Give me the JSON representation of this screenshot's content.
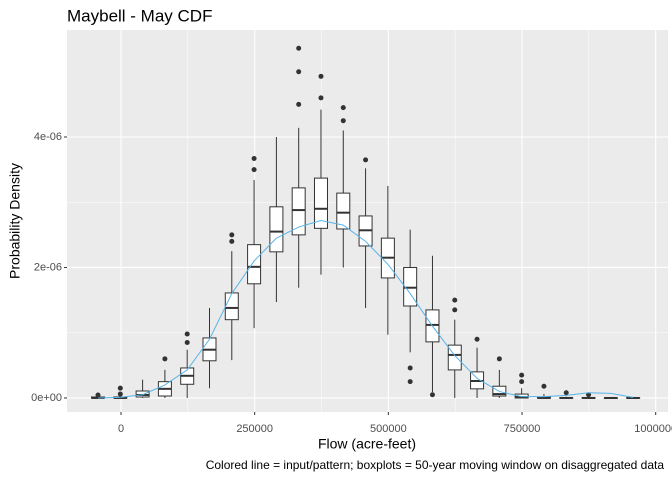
{
  "chart_data": {
    "type": "boxplot",
    "title": "Maybell - May CDF",
    "x_label": "Flow (acre-feet)",
    "y_label": "Probability Density",
    "caption": "Colored line = input/pattern; boxplots = 50-year moving window on disaggregated data",
    "xlim": [
      -101000,
      1023000
    ],
    "ylim": [
      -2.15e-07,
      5.64e-06
    ],
    "xticks": [
      0,
      250000,
      500000,
      750000,
      1000000
    ],
    "yticks": [
      {
        "value": 0,
        "label": "0e+00"
      },
      {
        "value": 2e-06,
        "label": "2e-06"
      },
      {
        "value": 4e-06,
        "label": "4e-06"
      }
    ],
    "grid": true,
    "x": [
      -43000,
      -1300,
      40400,
      82100,
      123800,
      165500,
      207200,
      248900,
      290600,
      332300,
      374000,
      415700,
      457400,
      499100,
      540800,
      582500,
      624200,
      665900,
      707600,
      749300,
      791000,
      832700,
      874400,
      916100,
      957800
    ],
    "boxes": [
      {
        "min": 0,
        "q1": 0,
        "median": 0,
        "q3": 1.5e-08,
        "max": 1.5e-08,
        "outliers": [
          4.6e-08
        ]
      },
      {
        "min": 0,
        "q1": 0,
        "median": 0,
        "q3": 1.5e-08,
        "max": 3e-08,
        "outliers": [
          6e-08,
          1.5e-07
        ]
      },
      {
        "min": 0,
        "q1": 1.5e-08,
        "median": 4.6e-08,
        "q3": 1.07e-07,
        "max": 2.8e-07,
        "outliers": []
      },
      {
        "min": 0,
        "q1": 3e-08,
        "median": 1.4e-07,
        "q3": 2.5e-07,
        "max": 4.3e-07,
        "outliers": [
          6e-07
        ]
      },
      {
        "min": 0,
        "q1": 2.1e-07,
        "median": 3.4e-07,
        "q3": 4.6e-07,
        "max": 7.4e-07,
        "outliers": [
          8.5e-07,
          9.8e-07
        ]
      },
      {
        "min": 1.5e-07,
        "q1": 5.7e-07,
        "median": 7.4e-07,
        "q3": 9.2e-07,
        "max": 1.38e-06,
        "outliers": []
      },
      {
        "min": 5.8e-07,
        "q1": 1.2e-06,
        "median": 1.38e-06,
        "q3": 1.61e-06,
        "max": 2.25e-06,
        "outliers": [
          2.4e-06,
          2.5e-06
        ]
      },
      {
        "min": 1.07e-06,
        "q1": 1.75e-06,
        "median": 2.01e-06,
        "q3": 2.35e-06,
        "max": 3.34e-06,
        "outliers": [
          3.5e-06,
          3.67e-06
        ]
      },
      {
        "min": 1.47e-06,
        "q1": 2.24e-06,
        "median": 2.55e-06,
        "q3": 2.93e-06,
        "max": 4e-06,
        "outliers": []
      },
      {
        "min": 1.69e-06,
        "q1": 2.5e-06,
        "median": 2.88e-06,
        "q3": 3.22e-06,
        "max": 4.14e-06,
        "outliers": [
          4.5e-06,
          5e-06,
          5.36e-06
        ]
      },
      {
        "min": 1.89e-06,
        "q1": 2.6e-06,
        "median": 2.9e-06,
        "q3": 3.37e-06,
        "max": 4.42e-06,
        "outliers": [
          4.6e-06,
          4.93e-06
        ]
      },
      {
        "min": 2e-06,
        "q1": 2.59e-06,
        "median": 2.84e-06,
        "q3": 3.14e-06,
        "max": 4.1e-06,
        "outliers": [
          4.25e-06,
          4.45e-06
        ]
      },
      {
        "min": 1.38e-06,
        "q1": 2.33e-06,
        "median": 2.57e-06,
        "q3": 2.79e-06,
        "max": 3.52e-06,
        "outliers": [
          3.65e-06
        ]
      },
      {
        "min": 9.7e-07,
        "q1": 1.84e-06,
        "median": 2.15e-06,
        "q3": 2.45e-06,
        "max": 3.25e-06,
        "outliers": []
      },
      {
        "min": 7e-07,
        "q1": 1.41e-06,
        "median": 1.69e-06,
        "q3": 2e-06,
        "max": 2.58e-06,
        "outliers": [
          2.5e-07,
          4.6e-07
        ]
      },
      {
        "min": 9e-08,
        "q1": 8.6e-07,
        "median": 1.12e-06,
        "q3": 1.35e-06,
        "max": 2.18e-06,
        "outliers": [
          5e-08
        ]
      },
      {
        "min": 0,
        "q1": 4.3e-07,
        "median": 6.6e-07,
        "q3": 8.1e-07,
        "max": 1.2e-06,
        "outliers": [
          1.35e-06,
          1.5e-06
        ]
      },
      {
        "min": 0,
        "q1": 1.4e-07,
        "median": 2.6e-07,
        "q3": 4e-07,
        "max": 7.7e-07,
        "outliers": [
          9e-07
        ]
      },
      {
        "min": 0,
        "q1": 3e-08,
        "median": 6e-08,
        "q3": 1.8e-07,
        "max": 4.3e-07,
        "outliers": [
          6e-07
        ]
      },
      {
        "min": 0,
        "q1": 0,
        "median": 1.5e-08,
        "q3": 6e-08,
        "max": 1.5e-07,
        "outliers": [
          2.5e-07,
          3.5e-07
        ]
      },
      {
        "min": 0,
        "q1": 0,
        "median": 0,
        "q3": 1.5e-08,
        "max": 6e-08,
        "outliers": [
          1.8e-07
        ]
      },
      {
        "min": 0,
        "q1": 0,
        "median": 0,
        "q3": 5e-09,
        "max": 2e-08,
        "outliers": [
          8e-08
        ]
      },
      {
        "min": 0,
        "q1": 0,
        "median": 0,
        "q3": 5e-09,
        "max": 1e-08,
        "outliers": [
          5e-08
        ]
      },
      {
        "min": 0,
        "q1": 0,
        "median": 0,
        "q3": 0,
        "max": 5e-09,
        "outliers": []
      },
      {
        "min": 0,
        "q1": 0,
        "median": 0,
        "q3": 5e-09,
        "max": 1e-08,
        "outliers": []
      }
    ],
    "line": {
      "color": "#56B4E9",
      "values": [
        0,
        1e-08,
        5e-08,
        2e-07,
        4.3e-07,
        9e-07,
        1.6e-06,
        2.1e-06,
        2.45e-06,
        2.62e-06,
        2.72e-06,
        2.65e-06,
        2.4e-06,
        2.05e-06,
        1.6e-06,
        1.1e-06,
        6.5e-07,
        3e-07,
        1e-07,
        2e-08,
        2e-08,
        4e-08,
        8e-08,
        7e-08,
        1e-08
      ]
    }
  }
}
